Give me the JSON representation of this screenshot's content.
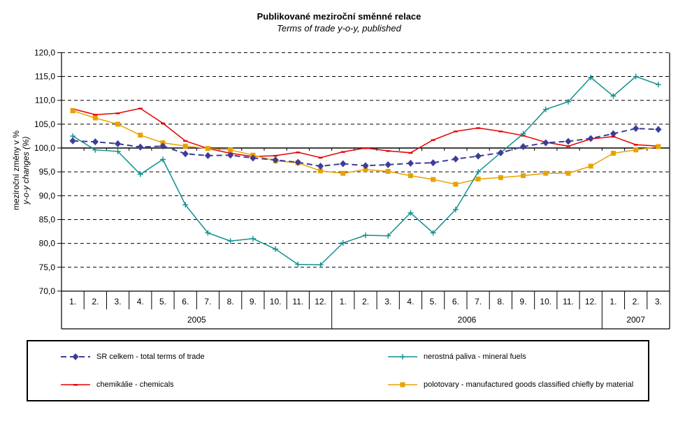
{
  "chart_data": {
    "type": "line",
    "title": "Publikované meziroční směnné relace",
    "subtitle": "Terms of trade y-o-y, published",
    "ylabel_cs": "meziroční změny v %",
    "ylabel_en": "y-o-y changes (%)",
    "ylim": [
      70,
      120
    ],
    "ytick_step": 5,
    "ytick_labels": [
      "120,0",
      "115,0",
      "110,0",
      "105,0",
      "100,0",
      "95,0",
      "90,0",
      "85,0",
      "80,0",
      "75,0",
      "70,0"
    ],
    "grid": "horizontal dashed, solid category axis at 100",
    "legend_position": "bottom box, 2 columns",
    "x_groups": [
      {
        "year": "2005",
        "months": [
          "1.",
          "2.",
          "3.",
          "4.",
          "5.",
          "6.",
          "7.",
          "8.",
          "9.",
          "10.",
          "11.",
          "12."
        ]
      },
      {
        "year": "2006",
        "months": [
          "1.",
          "2.",
          "3.",
          "4.",
          "5.",
          "6.",
          "7.",
          "8.",
          "9.",
          "10.",
          "11.",
          "12."
        ]
      },
      {
        "year": "2007",
        "months": [
          "1.",
          "2.",
          "3."
        ]
      }
    ],
    "series": [
      {
        "name": "SR celkem - total terms of trade",
        "color": "#3D3D99",
        "marker": "diamond",
        "line": "dashed",
        "values": [
          101.5,
          101.3,
          100.9,
          100.2,
          100.4,
          98.8,
          98.4,
          98.5,
          97.9,
          97.5,
          97.0,
          96.2,
          96.7,
          96.3,
          96.5,
          96.8,
          96.9,
          97.7,
          98.3,
          99.0,
          100.3,
          101.1,
          101.4,
          102.0,
          103.0,
          104.1,
          103.9
        ]
      },
      {
        "name": "nerostná paliva - mineral fuels",
        "color": "#128E8E",
        "marker": "plus",
        "line": "solid",
        "values": [
          102.5,
          99.6,
          99.3,
          94.5,
          97.6,
          88.1,
          82.2,
          80.5,
          81.0,
          78.8,
          75.6,
          75.5,
          80.1,
          81.7,
          81.6,
          86.4,
          82.2,
          87.1,
          95.0,
          99.0,
          103.0,
          108.1,
          109.7,
          114.8,
          110.9,
          115.0,
          113.3
        ]
      },
      {
        "name": "chemikálie - chemicals",
        "color": "#E60000",
        "marker": "dash",
        "line": "solid",
        "values": [
          108.2,
          107.0,
          107.3,
          108.3,
          105.2,
          101.5,
          99.9,
          98.9,
          98.2,
          98.4,
          99.1,
          98.0,
          99.2,
          100.0,
          99.4,
          99.0,
          101.7,
          103.5,
          104.2,
          103.5,
          102.6,
          101.2,
          100.4,
          101.9,
          102.4,
          100.7,
          100.4
        ]
      },
      {
        "name": "polotovary - manufactured goods classified chiefly by material",
        "color": "#E8A200",
        "marker": "square",
        "line": "solid",
        "values": [
          107.8,
          106.3,
          105.0,
          102.7,
          101.1,
          100.4,
          99.9,
          99.6,
          98.5,
          97.3,
          96.9,
          95.2,
          94.7,
          95.5,
          95.1,
          94.2,
          93.4,
          92.4,
          93.5,
          93.8,
          94.2,
          94.7,
          94.7,
          96.2,
          98.9,
          99.6,
          100.3
        ]
      }
    ]
  }
}
